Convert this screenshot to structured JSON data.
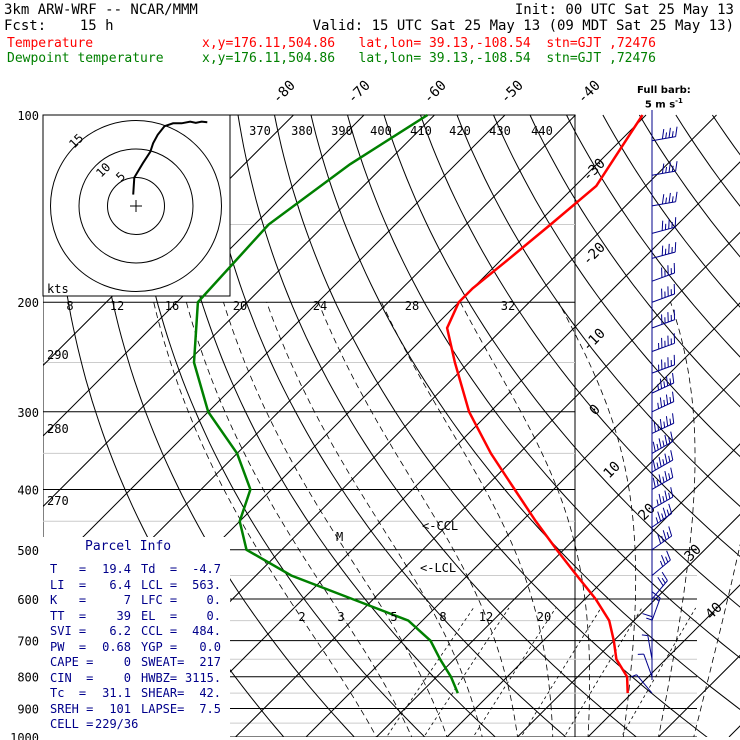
{
  "header": {
    "line1_left": "3km ARW-WRF -- NCAR/MMM",
    "line1_right": "Init: 00 UTC Sat 25 May 13",
    "line2_left": "Fcst:    15 h",
    "line2_right": "Valid: 15 UTC Sat 25 May 13 (09 MDT Sat 25 May 13)",
    "temp_label": "Temperature",
    "temp_info": "x,y=176.11,504.86   lat,lon= 39.13,-108.54  stn=GJT ,72476",
    "dew_label": "Dewpoint temperature",
    "dew_info": "x,y=176.11,504.86   lat,lon= 39.13,-108.54  stn=GJT ,72476"
  },
  "colors": {
    "temperature": "#ff0000",
    "dewpoint": "#008000",
    "panel_text": "#00008b",
    "barbs": "#00008b"
  },
  "barb_note": {
    "line1": "Full barb:",
    "line2": "5 m s",
    "unit_exp": "-1"
  },
  "chart_data": {
    "type": "line",
    "subtype": "skew-T log-P",
    "pressure_levels": [
      100,
      200,
      300,
      400,
      500,
      600,
      700,
      800,
      900,
      1000
    ],
    "pressure_labels": [
      "100",
      "200",
      "300",
      "400",
      "500",
      "600",
      "700",
      "800",
      "900",
      "1000"
    ],
    "isotherm_labels": [
      -80,
      -70,
      -60,
      -50,
      -40,
      -30,
      -20,
      -10,
      0,
      10,
      20,
      30,
      40
    ],
    "theta_labels_top": [
      370,
      380,
      390,
      400,
      410,
      420,
      430,
      440
    ],
    "theta_labels_left": [
      290,
      280,
      270
    ],
    "mixing_ratio_labels": [
      "2",
      "3",
      "5",
      "8",
      "12",
      "20"
    ],
    "series": [
      {
        "name": "Temperature",
        "pressure": [
          100,
          130,
          150,
          170,
          190,
          200,
          220,
          250,
          300,
          350,
          400,
          450,
          500,
          550,
          600,
          650,
          700,
          750,
          800,
          850
        ],
        "values": [
          -60.5,
          -57,
          -58,
          -59,
          -60,
          -60,
          -58,
          -52,
          -43,
          -34,
          -25.5,
          -18,
          -11,
          -4.5,
          1.5,
          6.5,
          10,
          13,
          17,
          19.4
        ]
      },
      {
        "name": "Dewpoint temperature",
        "pressure": [
          100,
          120,
          150,
          200,
          250,
          300,
          350,
          400,
          450,
          500,
          550,
          600,
          650,
          700,
          750,
          800,
          850
        ],
        "values": [
          -91,
          -95,
          -98,
          -97,
          -89,
          -80,
          -70,
          -63,
          -60,
          -55,
          -45,
          -33,
          -22,
          -16,
          -12,
          -8,
          -4.7
        ]
      }
    ],
    "annotations": [
      "<-CCL",
      "<-LCL",
      "M"
    ],
    "winds_kt": [
      {
        "p": 110,
        "spd": 25,
        "dir": 260
      },
      {
        "p": 125,
        "spd": 25,
        "dir": 260
      },
      {
        "p": 140,
        "spd": 25,
        "dir": 260
      },
      {
        "p": 155,
        "spd": 25,
        "dir": 255
      },
      {
        "p": 170,
        "spd": 25,
        "dir": 255
      },
      {
        "p": 185,
        "spd": 25,
        "dir": 250
      },
      {
        "p": 200,
        "spd": 25,
        "dir": 250
      },
      {
        "p": 220,
        "spd": 25,
        "dir": 250
      },
      {
        "p": 240,
        "spd": 30,
        "dir": 250
      },
      {
        "p": 260,
        "spd": 30,
        "dir": 250
      },
      {
        "p": 280,
        "spd": 30,
        "dir": 245
      },
      {
        "p": 300,
        "spd": 30,
        "dir": 245
      },
      {
        "p": 325,
        "spd": 35,
        "dir": 245
      },
      {
        "p": 350,
        "spd": 35,
        "dir": 240
      },
      {
        "p": 375,
        "spd": 35,
        "dir": 240
      },
      {
        "p": 400,
        "spd": 35,
        "dir": 240
      },
      {
        "p": 430,
        "spd": 30,
        "dir": 240
      },
      {
        "p": 460,
        "spd": 30,
        "dir": 235
      },
      {
        "p": 500,
        "spd": 25,
        "dir": 235
      },
      {
        "p": 550,
        "spd": 20,
        "dir": 230
      },
      {
        "p": 600,
        "spd": 15,
        "dir": 220
      },
      {
        "p": 650,
        "spd": 10,
        "dir": 200
      },
      {
        "p": 700,
        "spd": 10,
        "dir": 180
      },
      {
        "p": 750,
        "spd": 5,
        "dir": 170
      },
      {
        "p": 800,
        "spd": 5,
        "dir": 160
      },
      {
        "p": 850,
        "spd": 5,
        "dir": 140
      }
    ],
    "hodograph": {
      "ring_labels": [
        "5",
        "10",
        "15"
      ],
      "axis_label": "kts",
      "speed_ticks": [
        "8",
        "12",
        "16",
        "20",
        "24",
        "28",
        "32"
      ],
      "trace_u": [
        -0.5,
        -0.3,
        1.2,
        2.5,
        3.0,
        3.8,
        5.0,
        6.5,
        8.0,
        9.5,
        10.5,
        11.5,
        12.5
      ],
      "trace_v": [
        2.0,
        5.0,
        7.5,
        9.5,
        11.0,
        12.5,
        14.0,
        14.5,
        14.5,
        14.8,
        14.6,
        14.8,
        14.7
      ]
    }
  },
  "parcel_info": {
    "title": "Parcel Info",
    "rows": [
      [
        "T   =",
        "19.4",
        "Td  =",
        "-4.7"
      ],
      [
        "LI  =",
        "6.4",
        "LCL =",
        "563."
      ],
      [
        "K   =",
        "7",
        "LFC =",
        "0."
      ],
      [
        "TT  =",
        "39",
        "EL  =",
        "0."
      ],
      [
        "SVI =",
        "6.2",
        "CCL =",
        "484."
      ],
      [
        "PW  =",
        "0.68",
        "YGP =",
        "0.0"
      ],
      [
        "CAPE =",
        "0",
        "SWEAT=",
        "217"
      ],
      [
        "CIN  =",
        "0",
        "HWBZ=",
        "3115."
      ],
      [
        "Tc  =",
        "31.1",
        "SHEAR=",
        "42."
      ],
      [
        "SREH =",
        "101",
        "LAPSE=",
        "7.5"
      ],
      [
        "CELL =",
        "229/36",
        "",
        ""
      ]
    ]
  }
}
